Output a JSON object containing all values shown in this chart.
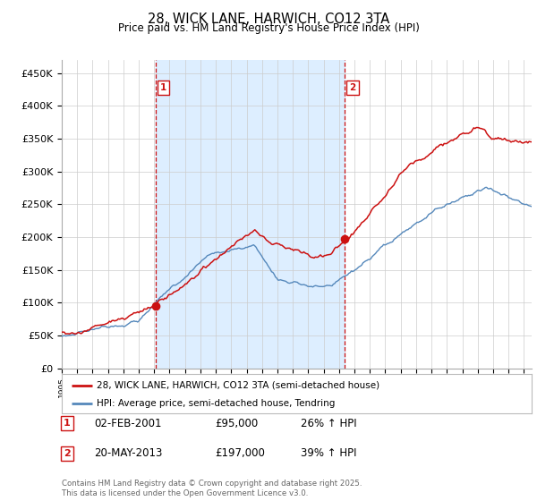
{
  "title": "28, WICK LANE, HARWICH, CO12 3TA",
  "subtitle": "Price paid vs. HM Land Registry's House Price Index (HPI)",
  "ylabel_ticks": [
    "£0",
    "£50K",
    "£100K",
    "£150K",
    "£200K",
    "£250K",
    "£300K",
    "£350K",
    "£400K",
    "£450K"
  ],
  "ytick_values": [
    0,
    50000,
    100000,
    150000,
    200000,
    250000,
    300000,
    350000,
    400000,
    450000
  ],
  "ylim": [
    0,
    470000
  ],
  "xlim_start": 1995.0,
  "xlim_end": 2025.5,
  "hpi_color": "#5588bb",
  "hpi_fill_color": "#ddeeff",
  "price_color": "#cc1111",
  "vline_color": "#cc1111",
  "marker1_x": 2001.083,
  "marker1_y": 95000,
  "marker2_x": 2013.38,
  "marker2_y": 197000,
  "legend_label_price": "28, WICK LANE, HARWICH, CO12 3TA (semi-detached house)",
  "legend_label_hpi": "HPI: Average price, semi-detached house, Tendring",
  "footer": "Contains HM Land Registry data © Crown copyright and database right 2025.\nThis data is licensed under the Open Government Licence v3.0.",
  "background_color": "#ffffff",
  "grid_color": "#cccccc"
}
